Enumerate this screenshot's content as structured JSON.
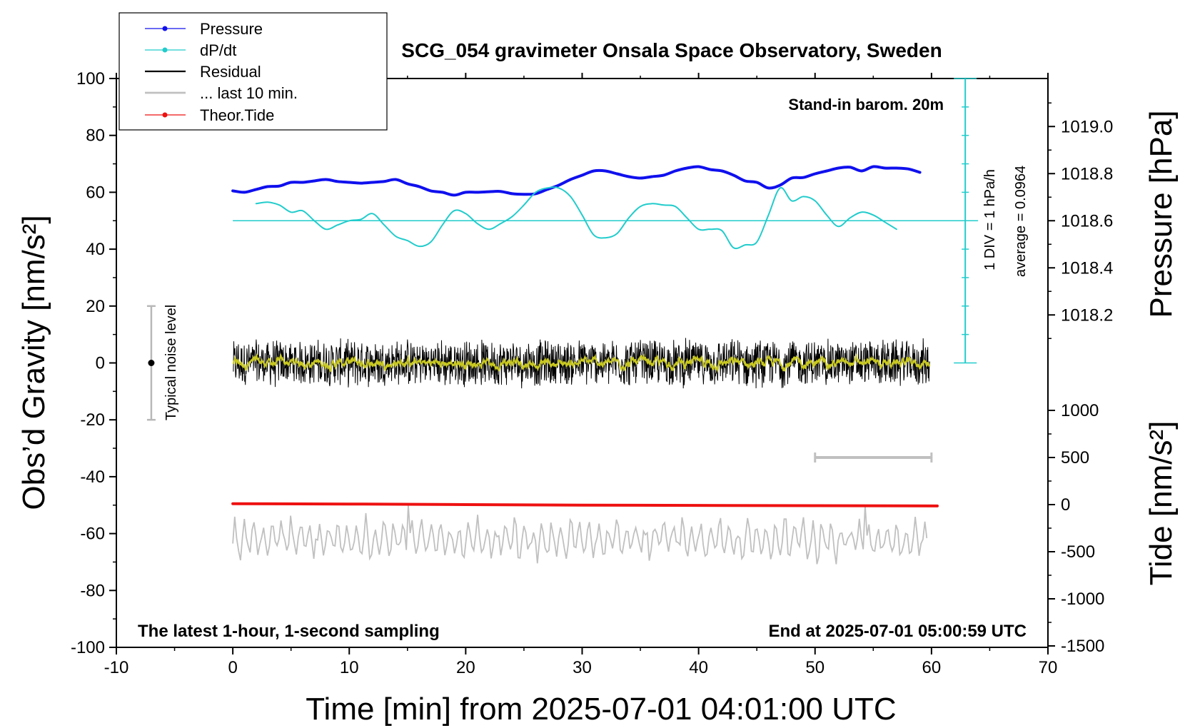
{
  "chart_data": {
    "type": "line",
    "title": "SCG_054 gravimeter Onsala Space Observatory, Sweden",
    "xlabel": "Time [min] from 2025-07-01 04:01:00 UTC",
    "ylabel_left": "Obs’d Gravity [nm/s²]",
    "ylabel_right_top": "Pressure [hPa]",
    "ylabel_right_bottom": "Tide [nm/s²]",
    "xlim": [
      -10,
      70
    ],
    "ylim_left": [
      -100,
      100
    ],
    "x_ticks": [
      "-10",
      "0",
      "10",
      "20",
      "30",
      "40",
      "50",
      "60",
      "70"
    ],
    "y_ticks_left": [
      "100",
      "80",
      "60",
      "40",
      "20",
      "0",
      "-20",
      "-40",
      "-60",
      "-80",
      "-100"
    ],
    "y_ticks_pressure": [
      "1019.0",
      "1018.8",
      "1018.6",
      "1018.4",
      "1018.2"
    ],
    "y_ticks_tide": [
      "1000",
      "500",
      "0",
      "-500",
      "-1000",
      "-1500"
    ],
    "annotations": {
      "barometer": "Stand-in barom. 20m",
      "latest": "The latest 1-hour, 1-second sampling",
      "end": "End at 2025-07-01 05:00:59 UTC",
      "noise": "Typical noise level",
      "div": "1 DIV = 1 hPa/h",
      "average": "average = 0.0964"
    },
    "legend": [
      "Pressure",
      "dP/dt",
      "Residual",
      "... last 10 min.",
      "Theor.Tide"
    ],
    "series": [
      {
        "name": "Pressure",
        "color": "#1010ee",
        "x": [
          0,
          1,
          2,
          3,
          4,
          5,
          6,
          7,
          8,
          9,
          10,
          11,
          12,
          13,
          14,
          15,
          16,
          17,
          18,
          19,
          20,
          21,
          22,
          23,
          24,
          25,
          26,
          27,
          28,
          29,
          30,
          31,
          32,
          33,
          34,
          35,
          36,
          37,
          38,
          39,
          40,
          41,
          42,
          43,
          44,
          45,
          46,
          47,
          48,
          49,
          50,
          51,
          52,
          53,
          54,
          55,
          56,
          57,
          58,
          59
        ],
        "y": [
          60.5,
          60,
          61,
          62,
          62.2,
          63.5,
          63.5,
          64,
          64.5,
          63.8,
          63.5,
          63.2,
          63.5,
          63.8,
          64.5,
          63,
          62,
          60.5,
          60,
          59,
          60,
          60,
          60.2,
          60.3,
          59.5,
          59.3,
          59.5,
          61,
          62.5,
          64.5,
          66,
          67.5,
          67.5,
          66.5,
          65.5,
          65,
          65.5,
          66,
          67.5,
          68.5,
          69,
          68,
          67.5,
          66,
          64,
          63.5,
          61.5,
          62.5,
          65,
          65.2,
          66.5,
          67.5,
          68.5,
          68.8,
          67.5,
          69,
          68.5,
          68.5,
          68.2,
          67
        ]
      },
      {
        "name": "dP/dt",
        "color": "#22cccc",
        "x": [
          2,
          3,
          4,
          5,
          6,
          7,
          8,
          9,
          10,
          11,
          12,
          13,
          14,
          15,
          16,
          17,
          18,
          19,
          20,
          21,
          22,
          23,
          24,
          25,
          26,
          27,
          28,
          29,
          30,
          31,
          32,
          33,
          34,
          35,
          36,
          37,
          38,
          39,
          40,
          41,
          42,
          43,
          44,
          45,
          46,
          47,
          48,
          49,
          50,
          51,
          52,
          53,
          54,
          55,
          56,
          57
        ],
        "y": [
          56,
          56.5,
          55.5,
          53,
          53.5,
          50,
          47,
          48.5,
          50,
          50.5,
          52.5,
          48.5,
          44.5,
          43,
          41,
          42.5,
          48.5,
          53.5,
          52.5,
          49,
          47,
          49,
          51.5,
          55.5,
          60,
          61.5,
          61.5,
          58.5,
          52,
          45,
          44,
          45.5,
          51,
          55,
          56,
          55.5,
          55,
          51,
          47,
          47,
          46.5,
          40.5,
          41.5,
          42.5,
          52,
          61.5,
          57,
          58.5,
          57,
          52,
          48,
          51,
          53,
          52,
          49.5,
          47
        ]
      },
      {
        "name": "Theor.Tide",
        "color": "#ee1111",
        "x": [
          0,
          10,
          20,
          30,
          40,
          50,
          60.5
        ],
        "y": [
          -49.5,
          -49.6,
          -49.8,
          -50,
          -50.1,
          -50.2,
          -50.3
        ]
      }
    ],
    "reference_lines": {
      "dpdt_average_y": 50,
      "pressure_div_scale_y": [
        100,
        0
      ]
    },
    "tide_scale_bar_x": [
      50,
      60
    ],
    "noise_level_range": [
      -20,
      20
    ]
  }
}
